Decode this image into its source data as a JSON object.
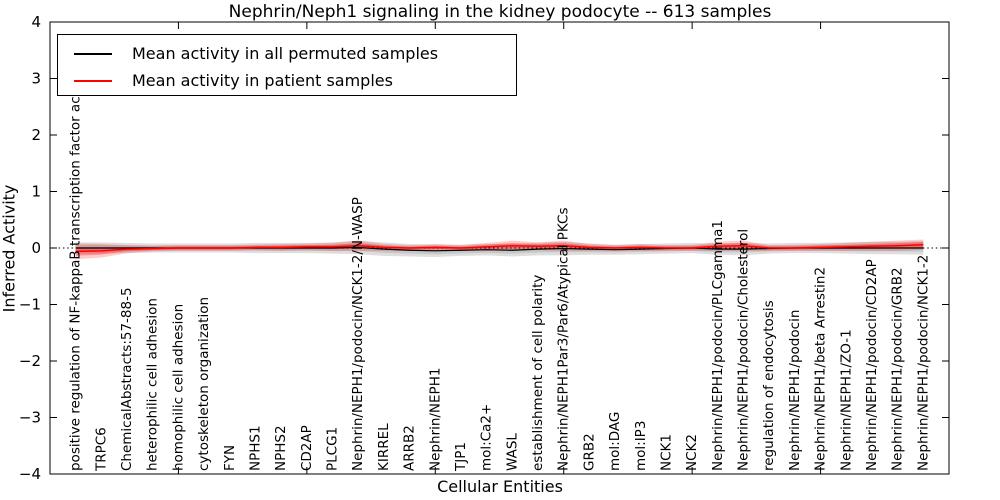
{
  "figure": {
    "title": "Nephrin/Neph1 signaling in the kidney podocyte -- 613 samples",
    "xlabel": "Cellular Entities",
    "ylabel": "Inferred Activity"
  },
  "legend": {
    "items": [
      {
        "label": "Mean activity in all permuted samples",
        "color": "#000000"
      },
      {
        "label": "Mean activity in patient samples",
        "color": "#ff0000"
      }
    ]
  },
  "colors": {
    "permuted_line": "#000000",
    "permuted_band": "rgba(0,0,0,0.13)",
    "patient_line": "#ff0000",
    "patient_band": "rgba(255,0,0,0.20)",
    "axis": "#000000",
    "background": "#ffffff"
  },
  "chart_data": {
    "type": "line",
    "title": "Nephrin/Neph1 signaling in the kidney podocyte -- 613 samples",
    "xlabel": "Cellular Entities",
    "ylabel": "Inferred Activity",
    "xlim": [
      0,
      35
    ],
    "ylim": [
      -4,
      4
    ],
    "x_major_ticks": [
      0,
      5,
      10,
      15,
      20,
      25,
      30,
      35
    ],
    "y_ticks": [
      -4,
      -3,
      -2,
      -1,
      0,
      1,
      2,
      3,
      4
    ],
    "grid": false,
    "zero_line": true,
    "legend_position": "upper left",
    "categories": [
      "positive regulation of NF-kappaB transcription factor activity",
      "TRPC6",
      "ChemicalAbstracts:57-88-5",
      "heterophilic cell adhesion",
      "homophilic cell adhesion",
      "cytoskeleton organization",
      "FYN",
      "NPHS1",
      "NPHS2",
      "CD2AP",
      "PLCG1",
      "Nephrin/NEPH1/podocin/NCK1-2/N-WASP",
      "KIRREL",
      "ARRB2",
      "Nephrin/NEPH1",
      "TJP1",
      "mol:Ca2+",
      "WASL",
      "establishment of cell polarity",
      "Nephrin/NEPH1Par3/Par6/Atypical PKCs",
      "GRB2",
      "mol:DAG",
      "mol:IP3",
      "NCK1",
      "NCK2",
      "Nephrin/NEPH1/podocin/PLCgamma1",
      "Nephrin/NEPH1/podocin/Cholesterol",
      "regulation of endocytosis",
      "Nephrin/NEPH1/podocin",
      "Nephrin/NEPH1/beta Arrestin2",
      "Nephrin/NEPH1/ZO-1",
      "Nephrin/NEPH1/podocin/CD2AP",
      "Nephrin/NEPH1/podocin/GRB2",
      "Nephrin/NEPH1/podocin/NCK1-2"
    ],
    "series": [
      {
        "name": "Mean activity in all permuted samples",
        "color": "#000000",
        "values": [
          0.0,
          0.0,
          0.0,
          0.0,
          0.0,
          0.0,
          0.0,
          0.0,
          0.0,
          0.0,
          0.0,
          0.01,
          -0.02,
          -0.04,
          -0.05,
          -0.04,
          -0.03,
          -0.04,
          -0.02,
          -0.01,
          -0.02,
          -0.03,
          -0.02,
          -0.01,
          0.0,
          -0.02,
          -0.02,
          -0.01,
          0.0,
          0.0,
          0.0,
          0.0,
          0.0,
          0.0
        ],
        "band": [
          0.1,
          0.1,
          0.09,
          0.08,
          0.08,
          0.08,
          0.08,
          0.09,
          0.09,
          0.09,
          0.1,
          0.12,
          0.12,
          0.11,
          0.11,
          0.1,
          0.1,
          0.11,
          0.11,
          0.12,
          0.1,
          0.09,
          0.09,
          0.09,
          0.09,
          0.1,
          0.11,
          0.09,
          0.09,
          0.09,
          0.1,
          0.11,
          0.11,
          0.12
        ]
      },
      {
        "name": "Mean activity in patient samples",
        "color": "#ff0000",
        "values": [
          -0.06,
          -0.05,
          -0.02,
          -0.01,
          0.0,
          0.0,
          0.0,
          0.01,
          0.01,
          0.02,
          0.02,
          0.04,
          0.01,
          0.0,
          0.01,
          0.0,
          0.02,
          0.04,
          0.03,
          0.04,
          0.01,
          0.0,
          0.01,
          0.0,
          0.0,
          0.03,
          0.04,
          0.0,
          0.0,
          0.01,
          0.02,
          0.03,
          0.04,
          0.06
        ],
        "band": [
          0.14,
          0.12,
          0.07,
          0.05,
          0.05,
          0.05,
          0.05,
          0.05,
          0.06,
          0.06,
          0.07,
          0.09,
          0.06,
          0.05,
          0.06,
          0.05,
          0.07,
          0.09,
          0.07,
          0.09,
          0.06,
          0.05,
          0.06,
          0.05,
          0.05,
          0.08,
          0.09,
          0.05,
          0.05,
          0.06,
          0.07,
          0.08,
          0.09,
          0.09
        ]
      }
    ]
  }
}
